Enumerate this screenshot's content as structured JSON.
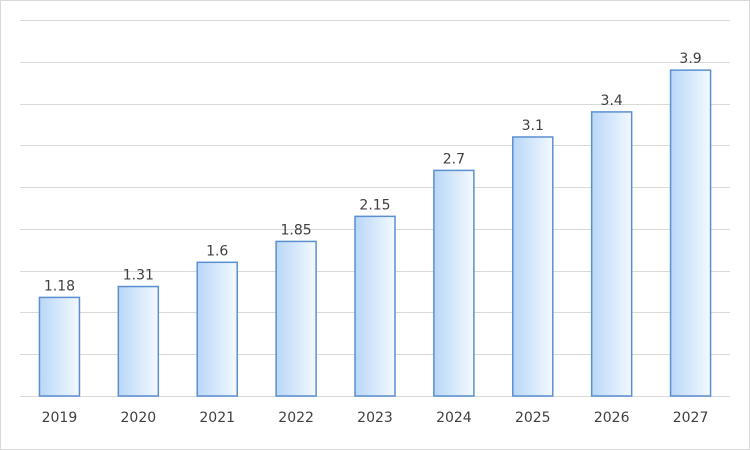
{
  "chart_data": {
    "type": "bar",
    "categories": [
      "2019",
      "2020",
      "2021",
      "2022",
      "2023",
      "2024",
      "2025",
      "2026",
      "2027"
    ],
    "values": [
      1.18,
      1.31,
      1.6,
      1.85,
      2.15,
      2.7,
      3.1,
      3.4,
      3.9
    ],
    "color": "#5b8fd0",
    "ylim": [
      0,
      4.5
    ],
    "yticks": [
      0,
      0.5,
      1,
      1.5,
      2,
      2.5,
      3,
      3.5,
      4,
      4.5
    ],
    "grid": true
  }
}
